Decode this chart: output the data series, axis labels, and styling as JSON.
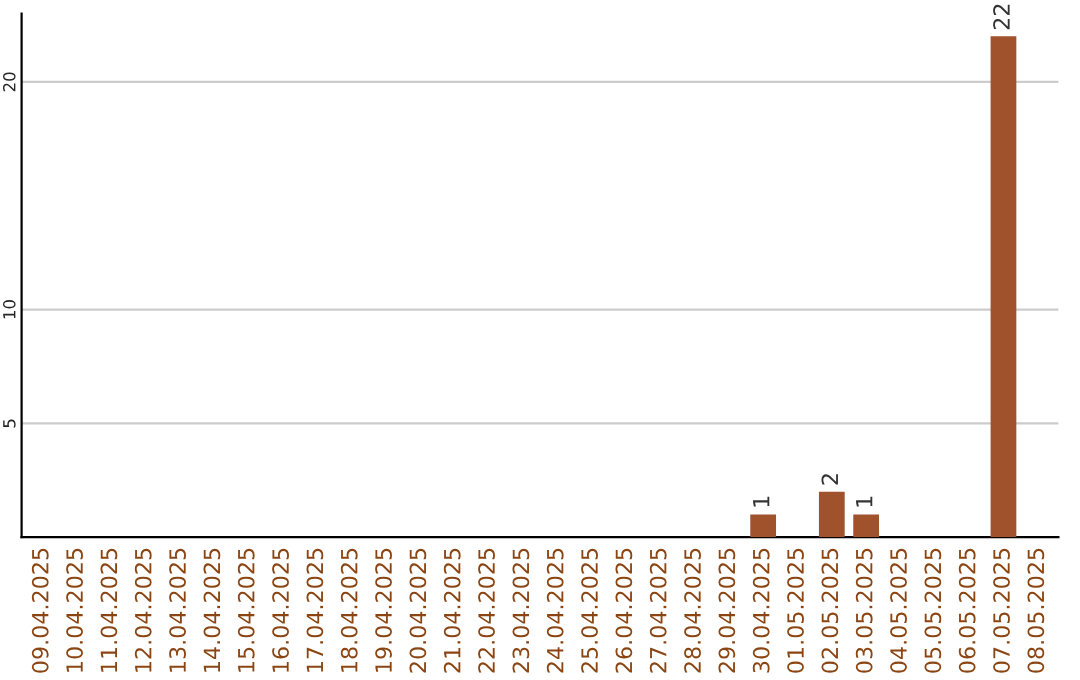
{
  "chart_data": {
    "type": "bar",
    "categories": [
      "09.04.2025",
      "10.04.2025",
      "11.04.2025",
      "12.04.2025",
      "13.04.2025",
      "14.04.2025",
      "15.04.2025",
      "16.04.2025",
      "17.04.2025",
      "18.04.2025",
      "19.04.2025",
      "20.04.2025",
      "21.04.2025",
      "22.04.2025",
      "23.04.2025",
      "24.04.2025",
      "25.04.2025",
      "26.04.2025",
      "27.04.2025",
      "28.04.2025",
      "29.04.2025",
      "30.04.2025",
      "01.05.2025",
      "02.05.2025",
      "03.05.2025",
      "04.05.2025",
      "05.05.2025",
      "06.05.2025",
      "07.05.2025",
      "08.05.2025"
    ],
    "values": [
      0,
      0,
      0,
      0,
      0,
      0,
      0,
      0,
      0,
      0,
      0,
      0,
      0,
      0,
      0,
      0,
      0,
      0,
      0,
      0,
      0,
      1,
      0,
      2,
      1,
      0,
      0,
      0,
      22,
      0
    ],
    "value_labels": [
      null,
      null,
      null,
      null,
      null,
      null,
      null,
      null,
      null,
      null,
      null,
      null,
      null,
      null,
      null,
      null,
      null,
      null,
      null,
      null,
      null,
      "1",
      null,
      "2",
      "1",
      null,
      null,
      null,
      "22",
      null
    ],
    "color": "#a0522d",
    "ylim": [
      0,
      23
    ],
    "yticks": [
      5,
      10,
      20
    ],
    "grid": "y"
  }
}
